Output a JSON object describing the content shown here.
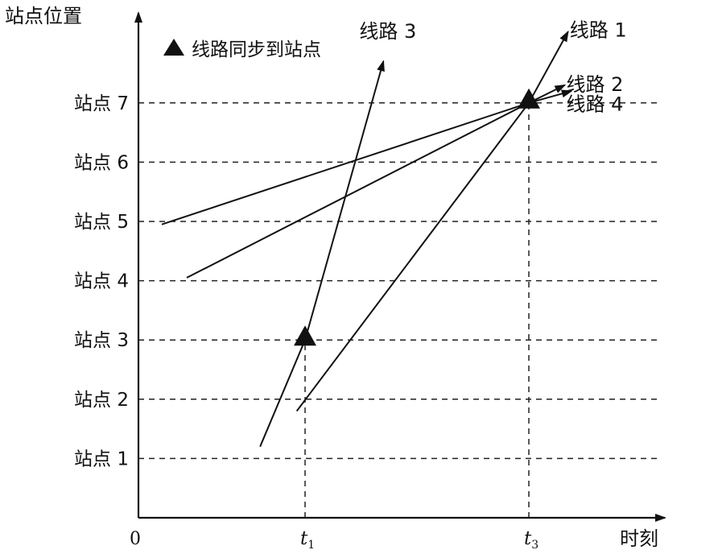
{
  "chart_data": {
    "type": "line",
    "ylabel": "站点位置",
    "xlabel": "时刻",
    "origin_label": "0",
    "legend": {
      "marker": "triangle",
      "label": "线路同步到站点",
      "placement": "top-left"
    },
    "y_categories": [
      "站点 1",
      "站点 2",
      "站点 3",
      "站点 4",
      "站点 5",
      "站点 6",
      "站点 7"
    ],
    "x_ticks": [
      {
        "label": "t",
        "sub": "1",
        "x": 1
      },
      {
        "label": "t",
        "sub": "3",
        "x": 3
      }
    ],
    "xlim": [
      0,
      3.6
    ],
    "ylim": [
      0,
      8
    ],
    "grid": "dashed at station levels",
    "series": [
      {
        "name": "线路 1",
        "points": [
          [
            0.95,
            1.8
          ],
          [
            3,
            7
          ],
          [
            3.35,
            8.2
          ]
        ],
        "label_pos": [
          3.62,
          8.12
        ]
      },
      {
        "name": "线路 2",
        "points": [
          [
            0.29,
            4.05
          ],
          [
            3,
            7
          ],
          [
            3.32,
            7.3
          ]
        ],
        "label_pos": [
          3.59,
          7.2
        ]
      },
      {
        "name": "线路 3",
        "points": [
          [
            0.73,
            1.2
          ],
          [
            1,
            3
          ],
          [
            1.7,
            7.7
          ]
        ],
        "label_pos": [
          1.74,
          8.1
        ]
      },
      {
        "name": "线路 4",
        "points": [
          [
            0.14,
            4.95
          ],
          [
            3,
            7
          ],
          [
            3.38,
            7.2
          ]
        ],
        "label_pos": [
          3.59,
          6.87
        ]
      }
    ],
    "sync_points": [
      [
        1,
        3
      ],
      [
        3,
        7
      ]
    ]
  }
}
